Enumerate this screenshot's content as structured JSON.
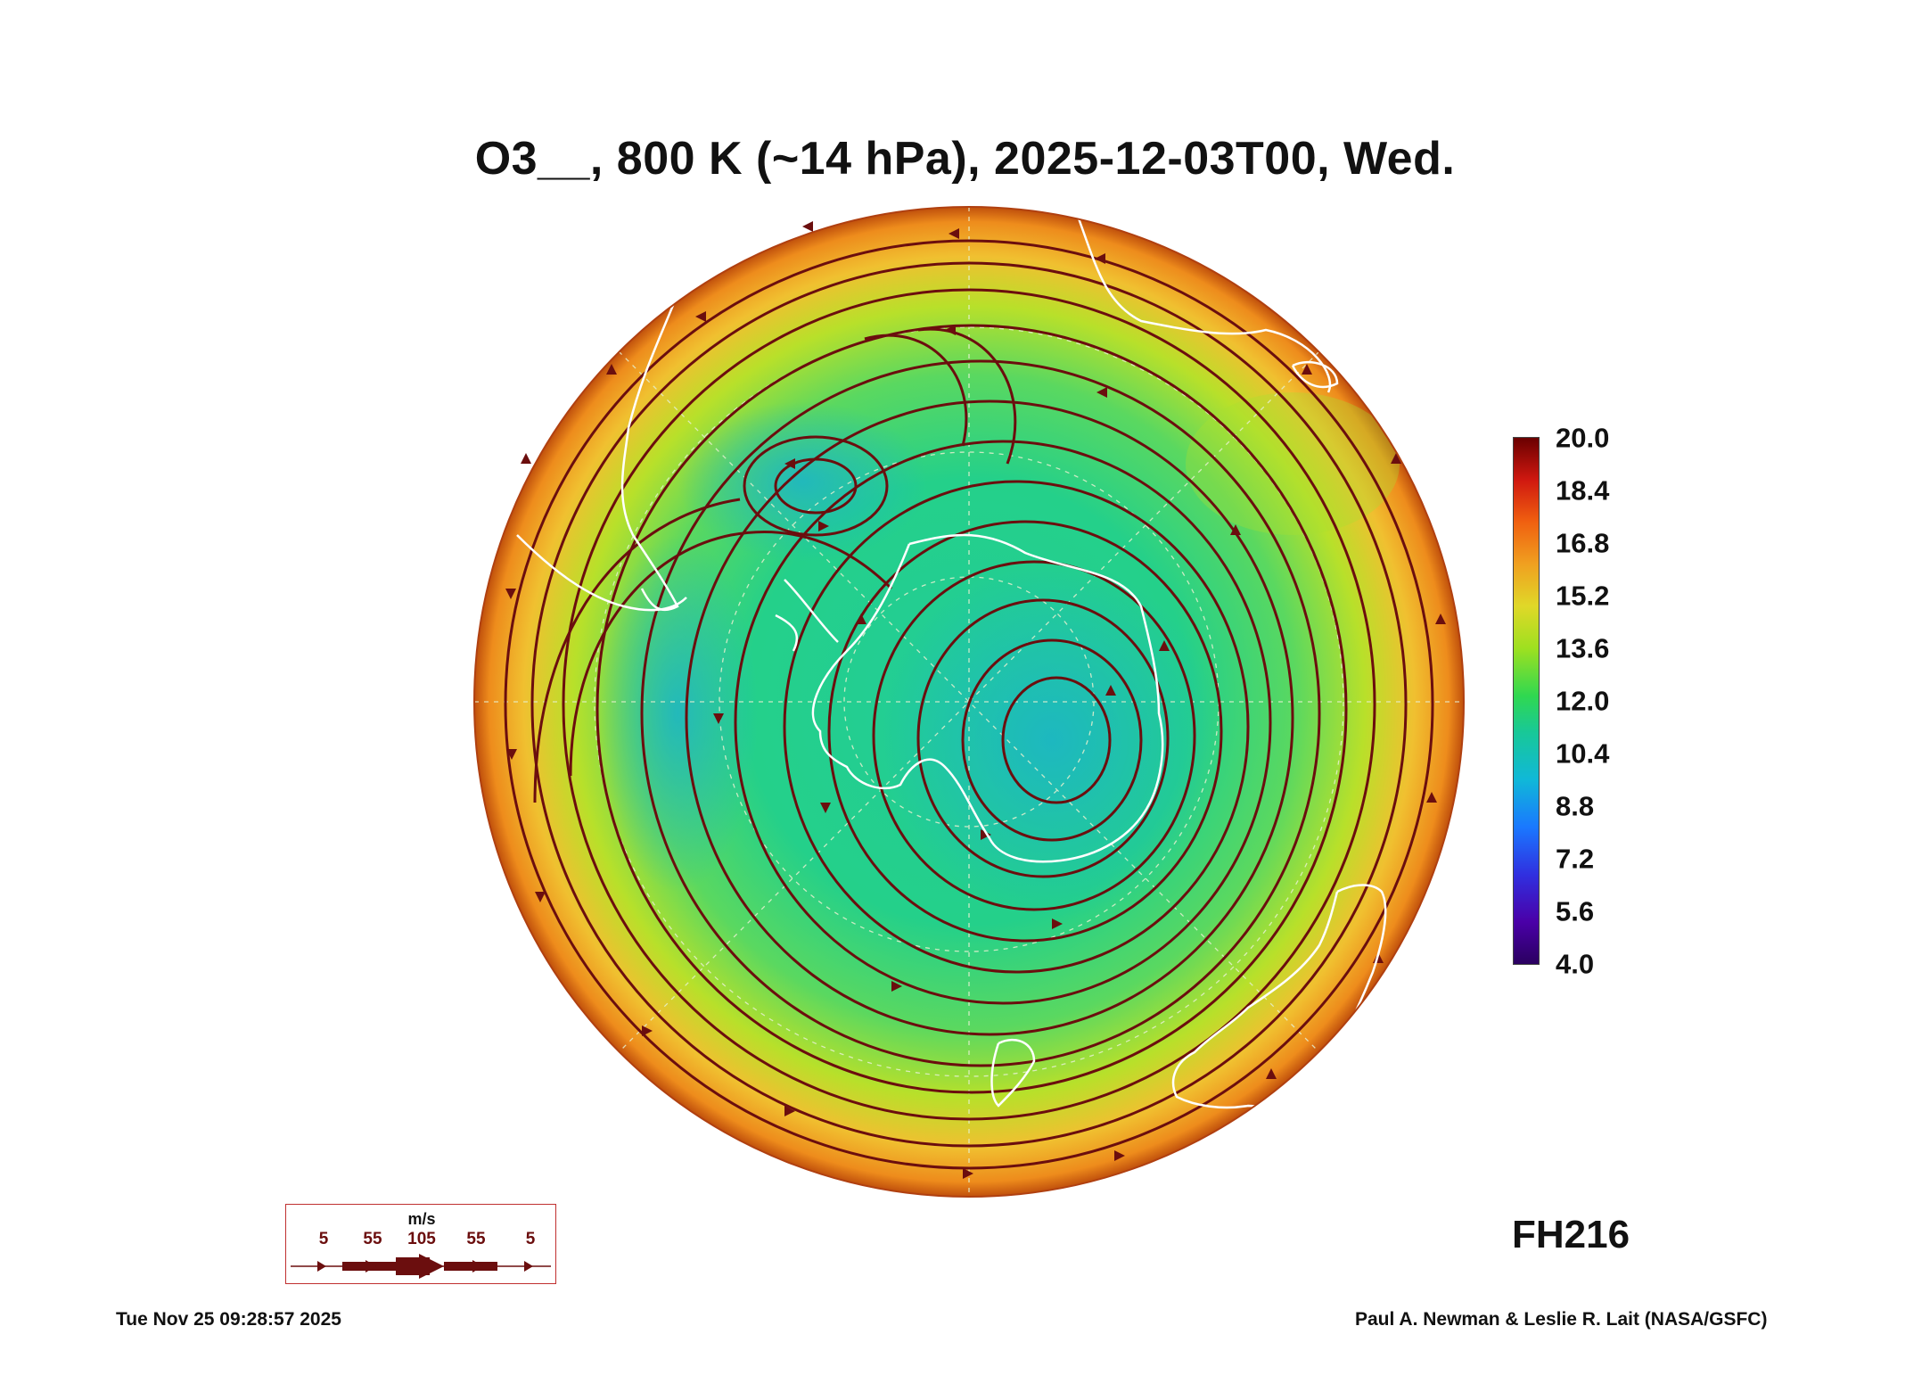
{
  "title": "O3__, 800 K (~14 hPa), 2025-12-03T00, Wed.",
  "colorbar": {
    "labels": [
      "20.0",
      "18.4",
      "16.8",
      "15.2",
      "13.6",
      "12.0",
      "10.4",
      "8.8",
      "7.2",
      "5.6",
      "4.0"
    ],
    "min": 4.0,
    "max": 20.0
  },
  "forecast_hour": "FH216",
  "wind_legend": {
    "unit": "m/s",
    "ticks": [
      "5",
      "55",
      "105",
      "55",
      "5"
    ]
  },
  "footer": {
    "timestamp": "Tue Nov 25 09:28:57 2025",
    "credit": "Paul A. Newman & Leslie R. Lait (NASA/GSFC)"
  },
  "colors": {
    "streamline": "#6b0e0e",
    "coastline": "#ffffff",
    "grid": "#e6f0d0"
  }
}
